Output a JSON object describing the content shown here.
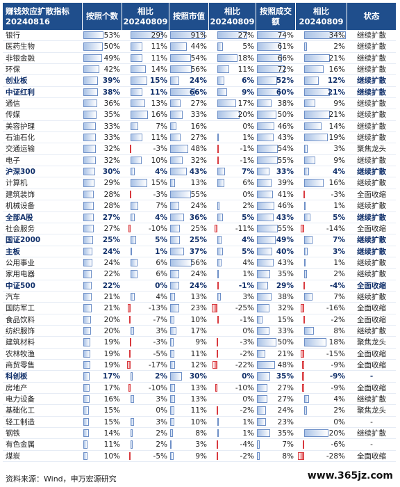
{
  "header": {
    "title": "赚钱效应扩散指标\n20240816",
    "cols": [
      "按照个数",
      "相比\n20240809",
      "按照市值",
      "相比\n20240809",
      "按照成交额",
      "相比\n20240809",
      "状态"
    ]
  },
  "scale": {
    "level_max": 100,
    "change_max": 34
  },
  "rows": [
    {
      "name": "银行",
      "bold": false,
      "count": "53%",
      "count_chg": "29%",
      "mcap": "91%",
      "mcap_chg": "27%",
      "amt": "74%",
      "amt_chg": "34%",
      "status": "继续扩散"
    },
    {
      "name": "医药生物",
      "bold": false,
      "count": "50%",
      "count_chg": "11%",
      "mcap": "44%",
      "mcap_chg": "5%",
      "amt": "61%",
      "amt_chg": "2%",
      "status": "继续扩散"
    },
    {
      "name": "非银金融",
      "bold": false,
      "count": "49%",
      "count_chg": "11%",
      "mcap": "54%",
      "mcap_chg": "18%",
      "amt": "66%",
      "amt_chg": "21%",
      "status": "继续扩散"
    },
    {
      "name": "环保",
      "bold": false,
      "count": "42%",
      "count_chg": "14%",
      "mcap": "56%",
      "mcap_chg": "11%",
      "amt": "72%",
      "amt_chg": "16%",
      "status": "继续扩散"
    },
    {
      "name": "创业板",
      "bold": true,
      "count": "39%",
      "count_chg": "15%",
      "mcap": "24%",
      "mcap_chg": "6%",
      "amt": "52%",
      "amt_chg": "12%",
      "status": "继续扩散"
    },
    {
      "name": "中证红利",
      "bold": true,
      "count": "38%",
      "count_chg": "11%",
      "mcap": "66%",
      "mcap_chg": "9%",
      "amt": "60%",
      "amt_chg": "21%",
      "status": "继续扩散"
    },
    {
      "name": "通信",
      "bold": false,
      "count": "36%",
      "count_chg": "13%",
      "mcap": "27%",
      "mcap_chg": "17%",
      "amt": "38%",
      "amt_chg": "9%",
      "status": "继续扩散"
    },
    {
      "name": "传媒",
      "bold": false,
      "count": "35%",
      "count_chg": "16%",
      "mcap": "33%",
      "mcap_chg": "20%",
      "amt": "50%",
      "amt_chg": "21%",
      "status": "继续扩散"
    },
    {
      "name": "美容护理",
      "bold": false,
      "count": "33%",
      "count_chg": "7%",
      "mcap": "16%",
      "mcap_chg": "0%",
      "amt": "46%",
      "amt_chg": "14%",
      "status": "继续扩散"
    },
    {
      "name": "石油石化",
      "bold": false,
      "count": "33%",
      "count_chg": "11%",
      "mcap": "27%",
      "mcap_chg": "1%",
      "amt": "43%",
      "amt_chg": "19%",
      "status": "继续扩散"
    },
    {
      "name": "交通运输",
      "bold": false,
      "count": "32%",
      "count_chg": "-3%",
      "mcap": "48%",
      "mcap_chg": "-1%",
      "amt": "54%",
      "amt_chg": "3%",
      "status": "聚焦龙头"
    },
    {
      "name": "电子",
      "bold": false,
      "count": "32%",
      "count_chg": "10%",
      "mcap": "32%",
      "mcap_chg": "-1%",
      "amt": "55%",
      "amt_chg": "9%",
      "status": "继续扩散"
    },
    {
      "name": "沪深300",
      "bold": true,
      "count": "30%",
      "count_chg": "4%",
      "mcap": "43%",
      "mcap_chg": "7%",
      "amt": "33%",
      "amt_chg": "4%",
      "status": "继续扩散"
    },
    {
      "name": "计算机",
      "bold": false,
      "count": "29%",
      "count_chg": "15%",
      "mcap": "13%",
      "mcap_chg": "6%",
      "amt": "39%",
      "amt_chg": "16%",
      "status": "继续扩散"
    },
    {
      "name": "建筑装饰",
      "bold": false,
      "count": "28%",
      "count_chg": "-3%",
      "mcap": "55%",
      "mcap_chg": "0%",
      "amt": "41%",
      "amt_chg": "-3%",
      "status": "全面收缩"
    },
    {
      "name": "机械设备",
      "bold": false,
      "count": "28%",
      "count_chg": "7%",
      "mcap": "24%",
      "mcap_chg": "2%",
      "amt": "46%",
      "amt_chg": "1%",
      "status": "继续扩散"
    },
    {
      "name": "全部A股",
      "bold": true,
      "count": "27%",
      "count_chg": "4%",
      "mcap": "36%",
      "mcap_chg": "5%",
      "amt": "43%",
      "amt_chg": "5%",
      "status": "继续扩散"
    },
    {
      "name": "社会服务",
      "bold": false,
      "count": "27%",
      "count_chg": "-10%",
      "mcap": "25%",
      "mcap_chg": "-11%",
      "amt": "55%",
      "amt_chg": "-14%",
      "status": "全面收缩"
    },
    {
      "name": "国证2000",
      "bold": true,
      "count": "25%",
      "count_chg": "5%",
      "mcap": "25%",
      "mcap_chg": "4%",
      "amt": "49%",
      "amt_chg": "7%",
      "status": "继续扩散"
    },
    {
      "name": "主板",
      "bold": true,
      "count": "24%",
      "count_chg": "1%",
      "mcap": "37%",
      "mcap_chg": "5%",
      "amt": "40%",
      "amt_chg": "3%",
      "status": "继续扩散"
    },
    {
      "name": "公用事业",
      "bold": false,
      "count": "24%",
      "count_chg": "6%",
      "mcap": "56%",
      "mcap_chg": "4%",
      "amt": "43%",
      "amt_chg": "1%",
      "status": "继续扩散"
    },
    {
      "name": "家用电器",
      "bold": false,
      "count": "22%",
      "count_chg": "6%",
      "mcap": "24%",
      "mcap_chg": "1%",
      "amt": "35%",
      "amt_chg": "2%",
      "status": "继续扩散"
    },
    {
      "name": "中证500",
      "bold": true,
      "count": "22%",
      "count_chg": "0%",
      "mcap": "24%",
      "mcap_chg": "-1%",
      "amt": "29%",
      "amt_chg": "-4%",
      "status": "全面收缩"
    },
    {
      "name": "汽车",
      "bold": false,
      "count": "21%",
      "count_chg": "4%",
      "mcap": "13%",
      "mcap_chg": "3%",
      "amt": "38%",
      "amt_chg": "7%",
      "status": "继续扩散"
    },
    {
      "name": "国防军工",
      "bold": false,
      "count": "21%",
      "count_chg": "-13%",
      "mcap": "23%",
      "mcap_chg": "-25%",
      "amt": "32%",
      "amt_chg": "-16%",
      "status": "全面收缩"
    },
    {
      "name": "食品饮料",
      "bold": false,
      "count": "20%",
      "count_chg": "-7%",
      "mcap": "10%",
      "mcap_chg": "-1%",
      "amt": "15%",
      "amt_chg": "-2%",
      "status": "全面收缩"
    },
    {
      "name": "纺织服饰",
      "bold": false,
      "count": "20%",
      "count_chg": "3%",
      "mcap": "17%",
      "mcap_chg": "0%",
      "amt": "33%",
      "amt_chg": "8%",
      "status": "继续扩散"
    },
    {
      "name": "建筑材料",
      "bold": false,
      "count": "19%",
      "count_chg": "-3%",
      "mcap": "9%",
      "mcap_chg": "-3%",
      "amt": "50%",
      "amt_chg": "18%",
      "status": "聚焦龙头"
    },
    {
      "name": "农林牧渔",
      "bold": false,
      "count": "19%",
      "count_chg": "-5%",
      "mcap": "11%",
      "mcap_chg": "-2%",
      "amt": "21%",
      "amt_chg": "-15%",
      "status": "全面收缩"
    },
    {
      "name": "商贸零售",
      "bold": false,
      "count": "19%",
      "count_chg": "-17%",
      "mcap": "12%",
      "mcap_chg": "-22%",
      "amt": "48%",
      "amt_chg": "-9%",
      "status": "全面收缩"
    },
    {
      "name": "科创板",
      "bold": true,
      "count": "17%",
      "count_chg": "2%",
      "mcap": "30%",
      "mcap_chg": "0%",
      "amt": "35%",
      "amt_chg": "-9%",
      "status": "-"
    },
    {
      "name": "房地产",
      "bold": false,
      "count": "17%",
      "count_chg": "-10%",
      "mcap": "13%",
      "mcap_chg": "-10%",
      "amt": "27%",
      "amt_chg": "-9%",
      "status": "全面收缩"
    },
    {
      "name": "电力设备",
      "bold": false,
      "count": "16%",
      "count_chg": "3%",
      "mcap": "13%",
      "mcap_chg": "0%",
      "amt": "27%",
      "amt_chg": "4%",
      "status": "继续扩散"
    },
    {
      "name": "基础化工",
      "bold": false,
      "count": "15%",
      "count_chg": "0%",
      "mcap": "11%",
      "mcap_chg": "-2%",
      "amt": "24%",
      "amt_chg": "2%",
      "status": "聚焦龙头"
    },
    {
      "name": "轻工制造",
      "bold": false,
      "count": "15%",
      "count_chg": "3%",
      "mcap": "10%",
      "mcap_chg": "1%",
      "amt": "23%",
      "amt_chg": "0%",
      "status": "-"
    },
    {
      "name": "钢铁",
      "bold": false,
      "count": "14%",
      "count_chg": "2%",
      "mcap": "8%",
      "mcap_chg": "1%",
      "amt": "35%",
      "amt_chg": "20%",
      "status": "继续扩散"
    },
    {
      "name": "有色金属",
      "bold": false,
      "count": "11%",
      "count_chg": "2%",
      "mcap": "3%",
      "mcap_chg": "-4%",
      "amt": "7%",
      "amt_chg": "-6%",
      "status": "-"
    },
    {
      "name": "煤炭",
      "bold": false,
      "count": "10%",
      "count_chg": "-5%",
      "mcap": "9%",
      "mcap_chg": "-2%",
      "amt": "8%",
      "amt_chg": "-28%",
      "status": "全面收缩"
    }
  ],
  "footer": "资料来源：Wind，申万宏源研究",
  "watermark": "www.365jz.com",
  "colors": {
    "header_bg": "#1f4e8c",
    "positive_bar": "#a9c2e6",
    "negative_bar": "#e2575a"
  }
}
